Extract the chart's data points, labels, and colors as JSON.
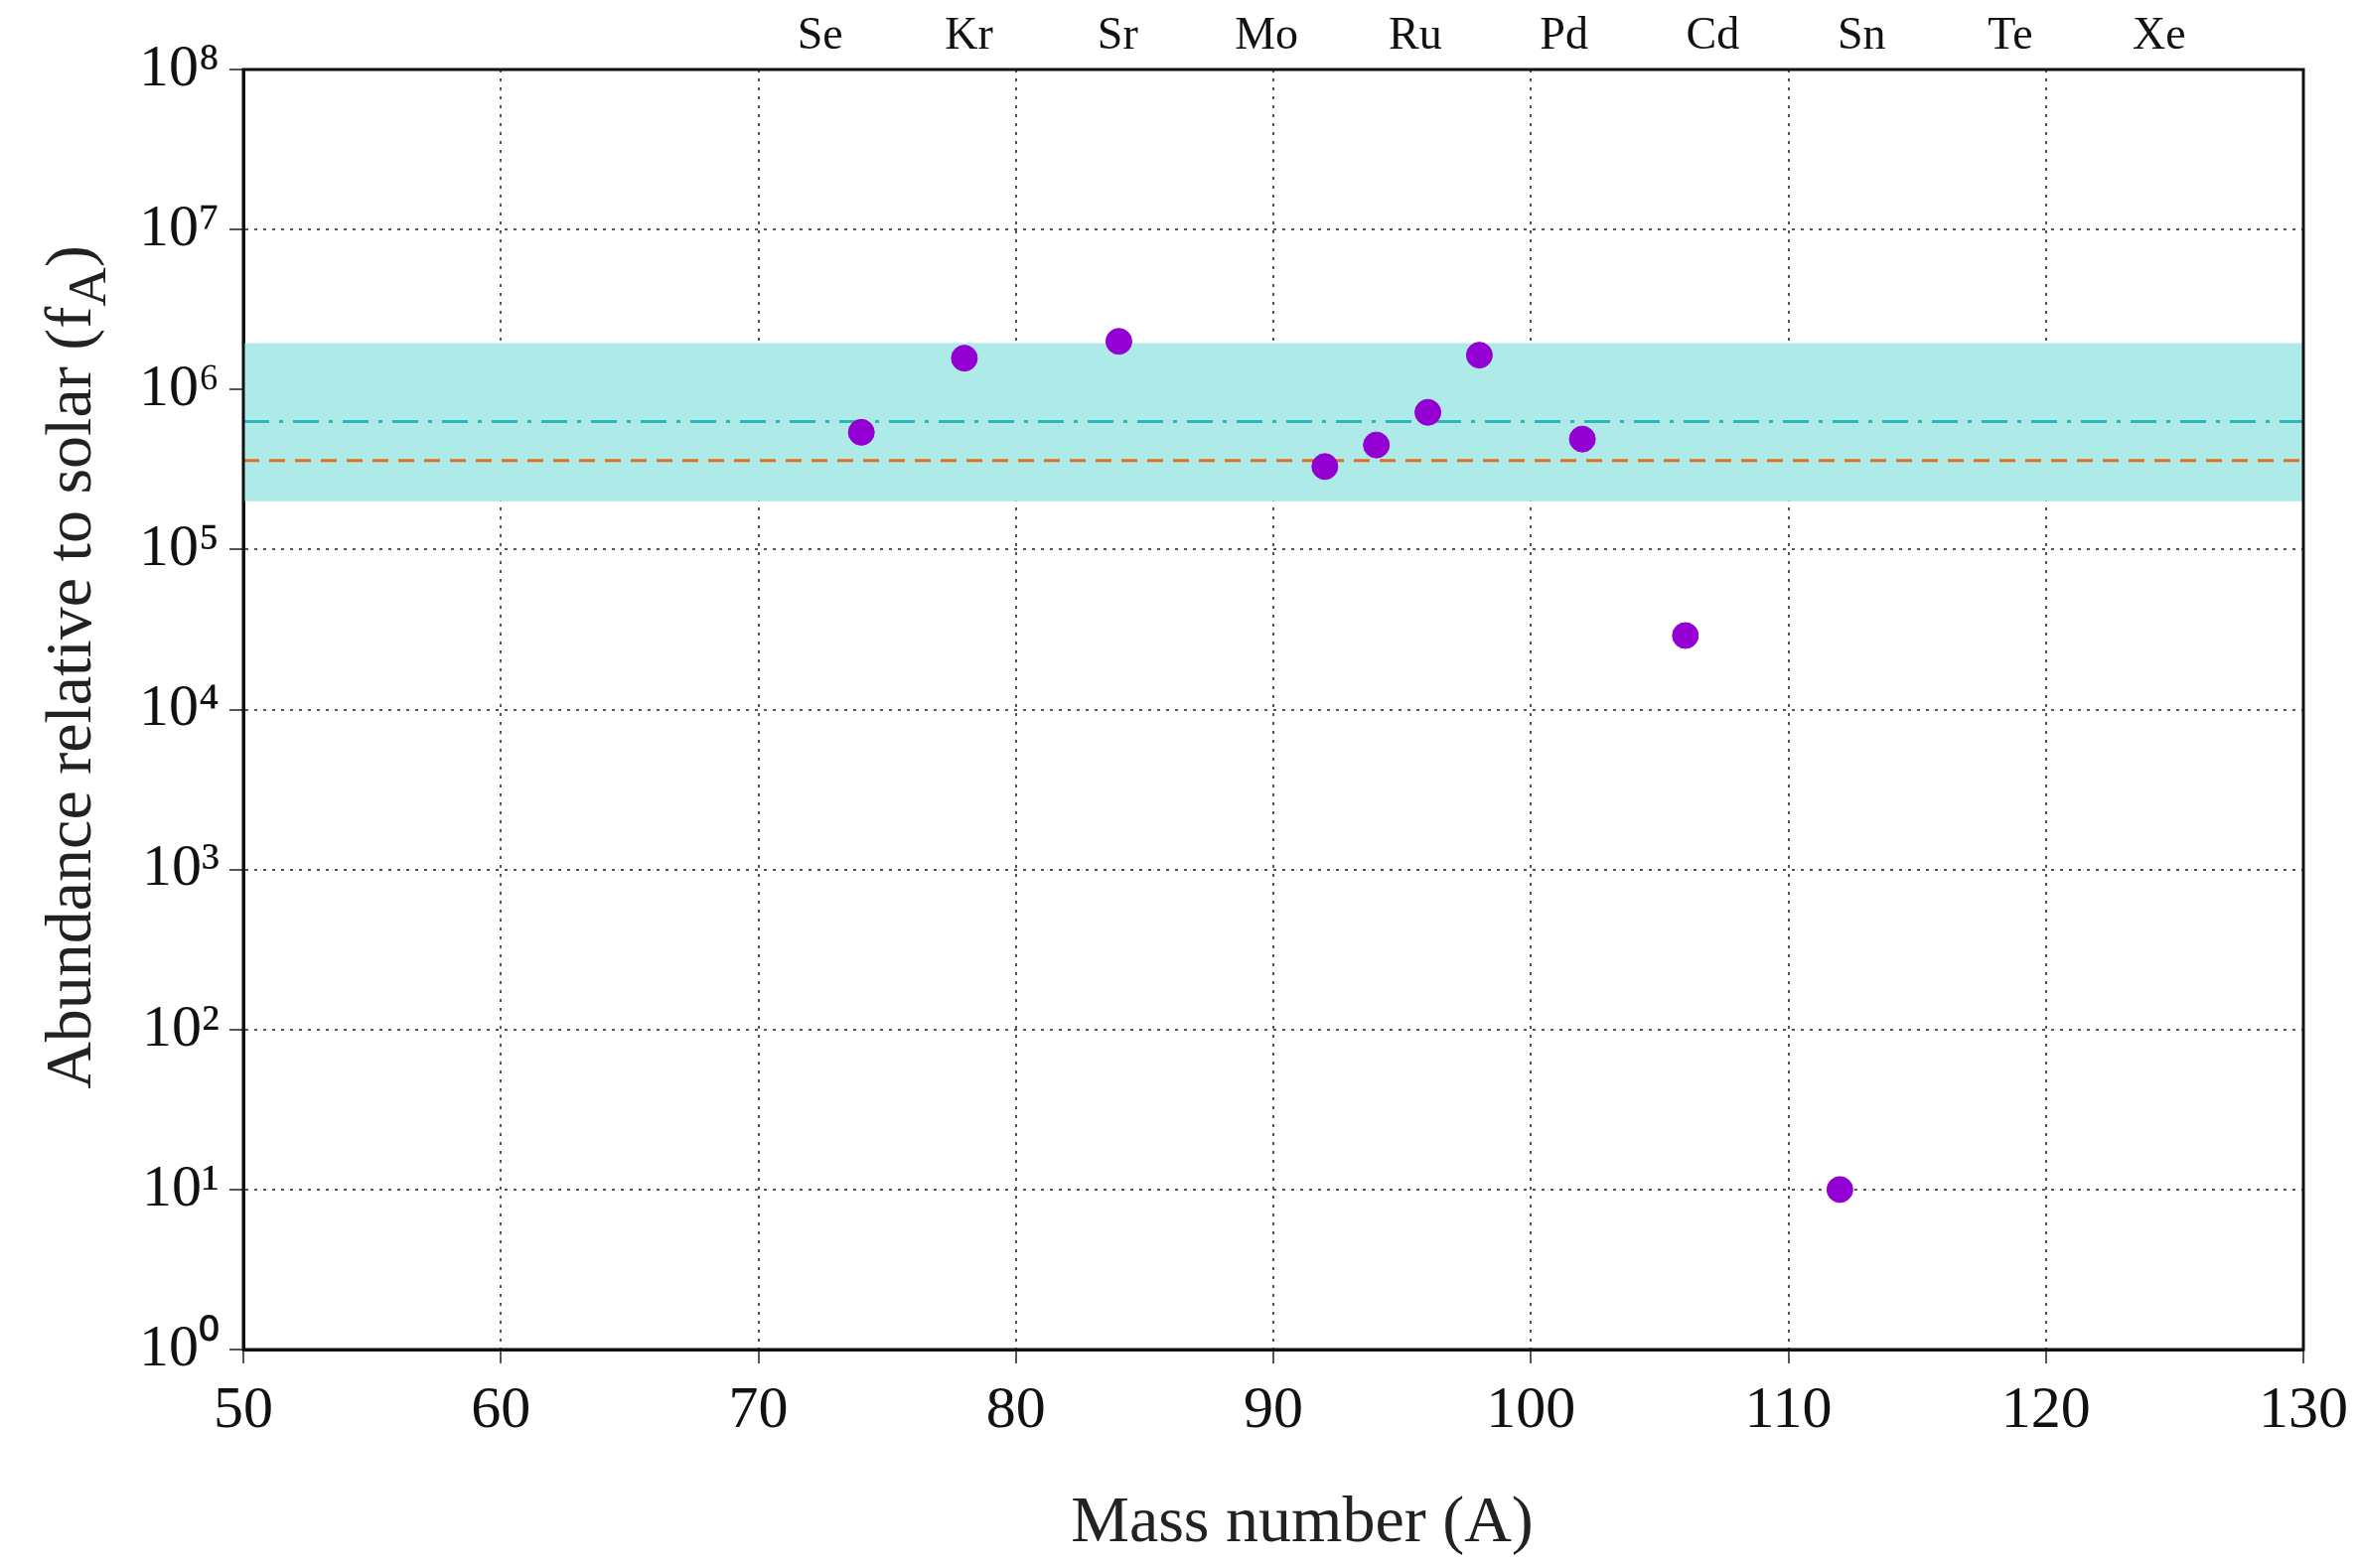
{
  "chart_data": {
    "type": "scatter",
    "xlabel": "Mass number (A)",
    "ylabel": "Abundance relative to solar (f$_{A}$)",
    "x": [
      74,
      78,
      84,
      92,
      94,
      96,
      98,
      102,
      106,
      112
    ],
    "series": [
      {
        "color": "#9400d3",
        "values": [
          540000,
          1570000,
          2000000,
          330000,
          450000,
          720000,
          1640000,
          490000,
          29000,
          10
        ]
      }
    ],
    "xlim": [
      50,
      130
    ],
    "xticks": [
      50,
      60,
      70,
      80,
      90,
      100,
      110,
      120,
      130
    ],
    "annotations": [
      "Se",
      "Kr",
      "Sr",
      "Mo",
      "Ru",
      "Pd",
      "Cd",
      "Sn",
      "Te",
      "Xe"
    ],
    "log": "y",
    "ylim": [
      1,
      100000000
    ],
    "yticks": [
      {
        "value": 1,
        "label": "10⁰"
      },
      {
        "value": 10,
        "label": "10¹"
      },
      {
        "value": 100,
        "label": "10²"
      },
      {
        "value": 1000,
        "label": "10³"
      },
      {
        "value": 10000,
        "label": "10⁴"
      },
      {
        "value": 100000,
        "label": "10⁵"
      },
      {
        "value": 1000000,
        "label": "10⁶"
      },
      {
        "value": 10000000,
        "label": "10⁷"
      },
      {
        "value": 100000000,
        "label": "10⁸"
      }
    ],
    "bands": [
      {
        "axis": "y",
        "from": 200000,
        "to": 1950000,
        "color": "#aeeae8"
      }
    ],
    "ref_lines": [
      {
        "axis": "y",
        "value": 630000,
        "color": "#2ab7b7",
        "line_style": "dashdot"
      },
      {
        "axis": "y",
        "value": 360000,
        "color": "#e07020",
        "line_style": "dashed"
      }
    ],
    "grid": true,
    "marker": "circle",
    "legend": false
  }
}
